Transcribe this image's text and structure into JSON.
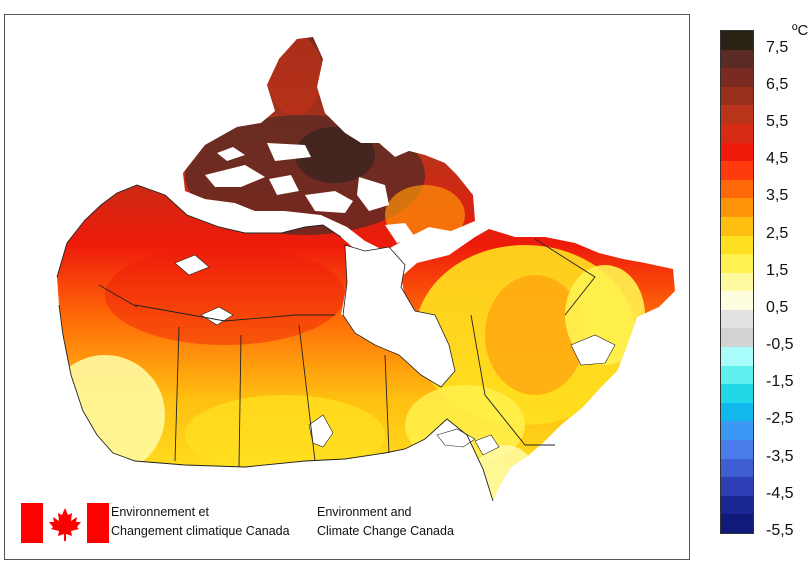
{
  "map": {
    "unit_label": "ºC",
    "legend": {
      "tick_labels": [
        "7,5",
        "6,5",
        "5,5",
        "4,5",
        "3,5",
        "2,5",
        "1,5",
        "0,5",
        "-0,5",
        "-1,5",
        "-2,5",
        "-3,5",
        "-4,5",
        "-5,5"
      ],
      "colors": [
        "#2b2216",
        "#5a2a24",
        "#7a2a20",
        "#98301c",
        "#b8341a",
        "#d72c14",
        "#ee1a0a",
        "#ff3a0c",
        "#ff6808",
        "#ff9408",
        "#ffbe10",
        "#ffe020",
        "#fff250",
        "#fffaa0",
        "#fffde0",
        "#e2e2e2",
        "#d2d2d2",
        "#a8fcfc",
        "#60f0f0",
        "#20d8e8",
        "#10b8ec",
        "#3c98f4",
        "#4a7cea",
        "#3e5ed2",
        "#2c3eb4",
        "#1a2694",
        "#101a78"
      ]
    },
    "colors": {
      "water": "#ffffff",
      "boundary": "#222222",
      "flag_red": "#ff0000"
    }
  },
  "branding": {
    "french_line1": "Environnement et",
    "french_line2": "Changement climatique Canada",
    "english_line1": "Environment and",
    "english_line2": "Climate Change Canada",
    "logo_icon": "canada-flag-icon"
  }
}
